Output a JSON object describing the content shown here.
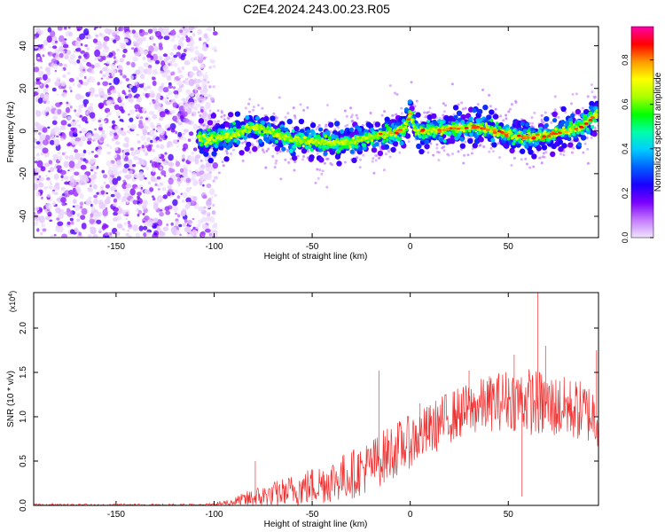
{
  "title": "C2E4.2024.243.00.23.R05",
  "chart_data": [
    {
      "type": "heatmap",
      "xlabel": "Height of straight line (km)",
      "ylabel": "Frequency (Hz)",
      "xlim": [
        -192,
        96
      ],
      "ylim": [
        -50,
        49
      ],
      "xticks": [
        -150,
        -100,
        -50,
        0,
        50
      ],
      "yticks": [
        -40,
        -20,
        0,
        20,
        40
      ],
      "colorbar": {
        "label": "Normalized spectral amplitude",
        "range": [
          0,
          0.95
        ],
        "ticks": [
          0.0,
          0.2,
          0.4,
          0.6,
          0.8
        ],
        "tick_labels": [
          "0.0",
          "0.2",
          "0.4",
          "0.6",
          "0.8"
        ],
        "colormap": [
          "#f0e4ff",
          "#c47aff",
          "#7b00ff",
          "#1b00ff",
          "#0060ff",
          "#00ccff",
          "#00ffaa",
          "#00ff00",
          "#aaff00",
          "#ffff00",
          "#ff9900",
          "#ff0000",
          "#ff00aa"
        ]
      },
      "ridge": {
        "x": [
          -108,
          -100,
          -92,
          -85,
          -80,
          -75,
          -68,
          -60,
          -50,
          -40,
          -30,
          -20,
          -10,
          -3,
          0,
          3,
          10,
          20,
          30,
          40,
          50,
          60,
          70,
          80,
          88,
          95
        ],
        "frequency": [
          -3,
          -4,
          -2,
          0,
          2,
          1,
          -2,
          -4,
          -5,
          -6,
          -5,
          -3,
          -1,
          1,
          8,
          0,
          0,
          1,
          2,
          1,
          -2,
          -3,
          -2,
          0,
          2,
          8
        ]
      },
      "noise_region_x": [
        -192,
        -105
      ]
    },
    {
      "type": "line",
      "xlabel": "Height of straight line (km)",
      "ylabel": "SNR (10 * v/v)",
      "exponent_label": "(x10",
      "exponent_sup": "4",
      "exponent_close": ")",
      "xlim": [
        -192,
        96
      ],
      "ylim": [
        0,
        2.4
      ],
      "xticks": [
        -150,
        -100,
        -50,
        0,
        50
      ],
      "yticks": [
        "0.0",
        "0.5",
        "1.0",
        "1.5",
        "2.0"
      ],
      "color": "#f03030",
      "envelope": {
        "x": [
          -192,
          -110,
          -100,
          -90,
          -80,
          -70,
          -60,
          -50,
          -40,
          -30,
          -20,
          -10,
          0,
          10,
          20,
          30,
          40,
          50,
          60,
          70,
          80,
          90,
          96
        ],
        "mean": [
          0.0,
          0.0,
          0.01,
          0.04,
          0.08,
          0.12,
          0.17,
          0.22,
          0.28,
          0.35,
          0.45,
          0.6,
          0.72,
          0.85,
          1.0,
          1.08,
          1.15,
          1.2,
          1.18,
          1.12,
          1.1,
          1.05,
          1.0
        ],
        "amplitude": [
          0.005,
          0.005,
          0.02,
          0.05,
          0.12,
          0.15,
          0.18,
          0.22,
          0.25,
          0.28,
          0.3,
          0.32,
          0.3,
          0.3,
          0.3,
          0.3,
          0.32,
          0.35,
          0.38,
          0.38,
          0.35,
          0.35,
          0.35
        ]
      },
      "spikes": [
        {
          "x": -79,
          "y": 0.5
        },
        {
          "x": -16,
          "y": 1.52
        },
        {
          "x": 5,
          "y": 1.15
        },
        {
          "x": 30,
          "y": 1.52
        },
        {
          "x": 53,
          "y": 1.7
        },
        {
          "x": 57,
          "y": 0.1
        },
        {
          "x": 65,
          "y": 2.42
        },
        {
          "x": 69,
          "y": 1.8
        },
        {
          "x": 95,
          "y": 1.75
        }
      ]
    }
  ]
}
